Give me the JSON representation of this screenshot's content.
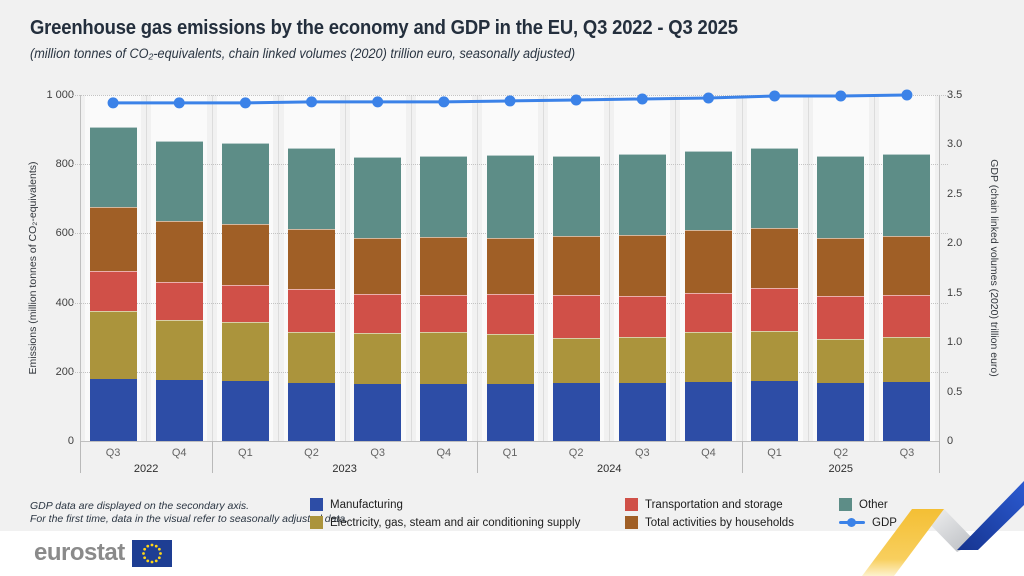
{
  "page": {
    "title": "Greenhouse gas emissions by the economy and GDP in the EU, Q3 2022 - Q3 2025",
    "subtitle": "(million tonnes of CO₂-equivalents, chain linked volumes (2020) trillion euro, seasonally adjusted)",
    "footnotes": [
      "GDP data are displayed on the secondary axis.",
      "For the first time, data in the visual refer to seasonally adjusted data."
    ],
    "logo_text": "eurostat"
  },
  "colors": {
    "background": "#f1f1f1",
    "column_band": "#fafafa",
    "manufacturing": "#2d4da6",
    "electricity": "#ab943c",
    "transportation": "#d05048",
    "households": "#a05f26",
    "other": "#5d8d87",
    "gdp_line": "#3b82e8",
    "eu_flag_blue": "#1e3e93",
    "eu_star_yellow": "#ffd617",
    "ribbon_yellow": "#f6c544",
    "ribbon_blue": "#2656c9"
  },
  "chart_data": {
    "type": "bar",
    "subtype": "stacked-bars-with-secondary-axis-line",
    "categories": [
      "Q3",
      "Q4",
      "Q1",
      "Q2",
      "Q3",
      "Q4",
      "Q1",
      "Q2",
      "Q3",
      "Q4",
      "Q1",
      "Q2",
      "Q3"
    ],
    "year_groups": [
      {
        "label": "2022",
        "quarters": 2
      },
      {
        "label": "2023",
        "quarters": 4
      },
      {
        "label": "2024",
        "quarters": 4
      },
      {
        "label": "2025",
        "quarters": 3
      }
    ],
    "series": [
      {
        "name": "Manufacturing",
        "color": "#2d4da6",
        "values": [
          178,
          175,
          173,
          168,
          164,
          166,
          166,
          168,
          168,
          171,
          173,
          168,
          172
        ]
      },
      {
        "name": "Electricity, gas, steam and air conditioning supply",
        "color": "#ab943c",
        "values": [
          197,
          174,
          171,
          147,
          147,
          148,
          143,
          131,
          133,
          144,
          145,
          128,
          129
        ]
      },
      {
        "name": "Transportation and storage",
        "color": "#d05048",
        "values": [
          115,
          111,
          107,
          124,
          114,
          108,
          116,
          122,
          119,
          113,
          123,
          124,
          121
        ]
      },
      {
        "name": "Total activities by households",
        "color": "#a05f26",
        "values": [
          185,
          176,
          176,
          173,
          161,
          169,
          163,
          171,
          175,
          182,
          174,
          166,
          171
        ]
      },
      {
        "name": "Other",
        "color": "#5d8d87",
        "values": [
          233,
          232,
          235,
          236,
          234,
          232,
          238,
          231,
          235,
          228,
          233,
          237,
          237
        ]
      }
    ],
    "bar_totals": [
      908,
      868,
      862,
      848,
      820,
      823,
      826,
      823,
      830,
      838,
      848,
      823,
      830
    ],
    "gdp": {
      "name": "GDP",
      "color": "#3b82e8",
      "axis": "right",
      "values": [
        3.42,
        3.42,
        3.42,
        3.43,
        3.43,
        3.43,
        3.44,
        3.45,
        3.46,
        3.47,
        3.49,
        3.49,
        3.5
      ]
    },
    "axes": {
      "left": {
        "label": "Emissions (million tonnes of CO₂-equivalents)",
        "ticks": [
          "0",
          "200",
          "400",
          "600",
          "800",
          "1 000"
        ],
        "min": 0,
        "max": 1000
      },
      "right": {
        "label": "GDP (chain linked volumes (2020) trillion euro)",
        "ticks": [
          "0",
          "0.5",
          "1.0",
          "1.5",
          "2.0",
          "2.5",
          "3.0",
          "3.5"
        ],
        "min": 0,
        "max": 3.5
      }
    },
    "legend": {
      "position": "bottom",
      "items": [
        {
          "label": "Manufacturing",
          "type": "box",
          "color": "#2d4da6"
        },
        {
          "label": "Electricity, gas, steam and air conditioning supply",
          "type": "box",
          "color": "#ab943c"
        },
        {
          "label": "Transportation and storage",
          "type": "box",
          "color": "#d05048"
        },
        {
          "label": "Total activities by households",
          "type": "box",
          "color": "#a05f26"
        },
        {
          "label": "Other",
          "type": "box",
          "color": "#5d8d87"
        },
        {
          "label": "GDP",
          "type": "line",
          "color": "#3b82e8"
        }
      ]
    },
    "grid": "horizontal-dotted"
  }
}
